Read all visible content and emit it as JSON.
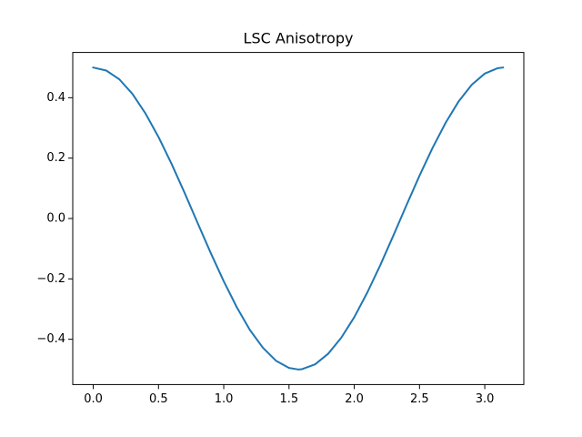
{
  "chart_data": {
    "type": "line",
    "title": "LSC Anisotropy",
    "x": [
      0,
      0.1,
      0.2,
      0.3,
      0.4,
      0.5,
      0.6,
      0.7,
      0.8,
      0.9,
      1.0,
      1.1,
      1.2,
      1.3,
      1.4,
      1.5,
      1.57,
      1.6,
      1.7,
      1.8,
      1.9,
      2.0,
      2.1,
      2.2,
      2.3,
      2.4,
      2.5,
      2.6,
      2.7,
      2.8,
      2.9,
      3.0,
      3.1,
      3.14
    ],
    "series": [
      {
        "color": "#1f77b4",
        "values": [
          0.5,
          0.49,
          0.461,
          0.413,
          0.348,
          0.27,
          0.181,
          0.085,
          -0.015,
          -0.114,
          -0.208,
          -0.294,
          -0.369,
          -0.428,
          -0.471,
          -0.495,
          -0.5,
          -0.499,
          -0.483,
          -0.448,
          -0.395,
          -0.327,
          -0.245,
          -0.154,
          -0.056,
          0.044,
          0.142,
          0.234,
          0.317,
          0.388,
          0.443,
          0.48,
          0.498,
          0.5
        ]
      }
    ],
    "xlim": [
      -0.157,
      3.299
    ],
    "ylim": [
      -0.55,
      0.55
    ],
    "xticks": [
      {
        "value": 0,
        "label": "0.0"
      },
      {
        "value": 0.5,
        "label": "0.5"
      },
      {
        "value": 1,
        "label": "1.0"
      },
      {
        "value": 1.5,
        "label": "1.5"
      },
      {
        "value": 2,
        "label": "2.0"
      },
      {
        "value": 2.5,
        "label": "2.5"
      },
      {
        "value": 3,
        "label": "3.0"
      }
    ],
    "yticks": [
      {
        "value": -0.4,
        "label": "−0.4"
      },
      {
        "value": -0.2,
        "label": "−0.2"
      },
      {
        "value": 0,
        "label": "0.0"
      },
      {
        "value": 0.2,
        "label": "0.2"
      },
      {
        "value": 0.4,
        "label": "0.4"
      }
    ],
    "grid": false
  }
}
